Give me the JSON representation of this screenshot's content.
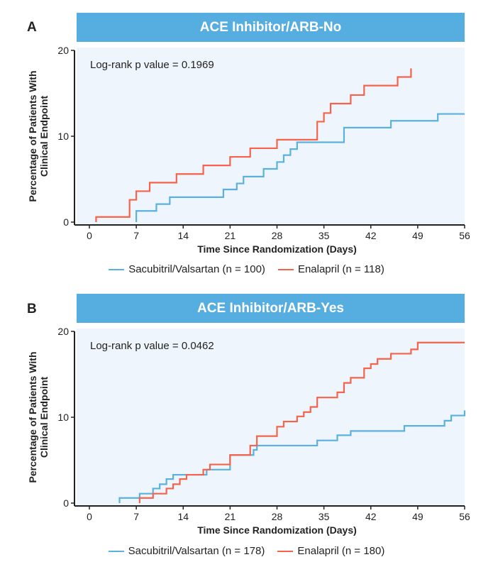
{
  "panels": [
    {
      "letter": "A",
      "banner": "ACE Inhibitor/ARB-No",
      "pvalue": "Log-rank p value = 0.1969",
      "legend": [
        "Sacubitril/Valsartan (n = 100)",
        "Enalapril (n = 118)"
      ]
    },
    {
      "letter": "B",
      "banner": "ACE Inhibitor/ARB-Yes",
      "pvalue": "Log-rank p value = 0.0462",
      "legend": [
        "Sacubitril/Valsartan (n = 178)",
        "Enalapril (n = 180)"
      ]
    }
  ],
  "colors": {
    "banner": "#56ade0",
    "sacubitril": "#5ab1de",
    "enalapril": "#f4634a",
    "plot_bg": "#eef5fc"
  },
  "chart_data": [
    {
      "type": "line",
      "step": true,
      "title": "ACE Inhibitor/ARB-No",
      "xlabel": "Time Since Randomization (Days)",
      "ylabel": "Percentage of Patients With Clinical Endpoint",
      "xlim": [
        0,
        56
      ],
      "ylim": [
        0,
        20
      ],
      "xticks": [
        0,
        7,
        14,
        21,
        28,
        35,
        42,
        49,
        56
      ],
      "yticks": [
        0,
        10,
        20
      ],
      "annotation": "Log-rank p value = 0.1969",
      "legend_position": "bottom",
      "series": [
        {
          "name": "Sacubitril/Valsartan (n = 100)",
          "color": "#5ab1de",
          "x": [
            7,
            7,
            10,
            12,
            20,
            22,
            23,
            26,
            28,
            29,
            30,
            31,
            38,
            45,
            52,
            56
          ],
          "y": [
            0,
            1.3,
            2.1,
            2.9,
            3.8,
            4.5,
            5.3,
            6.2,
            7.0,
            7.8,
            8.5,
            9.3,
            11.0,
            11.8,
            12.6,
            12.6
          ]
        },
        {
          "name": "Enalapril (n = 118)",
          "color": "#f4634a",
          "x": [
            1,
            1,
            6,
            7,
            9,
            13,
            17,
            21,
            24,
            28,
            34,
            35,
            36,
            39,
            41,
            46,
            48,
            48
          ],
          "y": [
            0,
            0.6,
            2.6,
            3.6,
            4.6,
            5.6,
            6.6,
            7.6,
            8.6,
            9.6,
            11.7,
            12.7,
            13.8,
            14.8,
            15.9,
            16.9,
            16.9,
            17.9
          ]
        }
      ]
    },
    {
      "type": "line",
      "step": true,
      "title": "ACE Inhibitor/ARB-Yes",
      "xlabel": "Time Since Randomization (Days)",
      "ylabel": "Percentage of Patients With Clinical Endpoint",
      "xlim": [
        0,
        56
      ],
      "ylim": [
        0,
        20
      ],
      "xticks": [
        0,
        7,
        14,
        21,
        28,
        35,
        42,
        49,
        56
      ],
      "yticks": [
        0,
        10,
        20
      ],
      "annotation": "Log-rank p value = 0.0462",
      "legend_position": "bottom",
      "series": [
        {
          "name": "Sacubitril/Valsartan (n = 178)",
          "color": "#5ab1de",
          "x": [
            4.5,
            4.5,
            7.5,
            9.5,
            10.5,
            11.5,
            12.5,
            17.5,
            21,
            24.5,
            25,
            34,
            37,
            39,
            47,
            53,
            54,
            56,
            56
          ],
          "y": [
            0,
            0.6,
            1.1,
            1.7,
            2.2,
            2.8,
            3.3,
            3.9,
            5.6,
            6.2,
            6.7,
            7.3,
            7.9,
            8.4,
            9.0,
            9.6,
            10.2,
            10.2,
            10.8
          ]
        },
        {
          "name": "Enalapril (n = 180)",
          "color": "#f4634a",
          "x": [
            7.5,
            7.5,
            9.5,
            11.5,
            12.5,
            13.5,
            14.5,
            17,
            18,
            21,
            24,
            25,
            28,
            29,
            31,
            32,
            33,
            34,
            37,
            38,
            39,
            41,
            42,
            43,
            45,
            48,
            49,
            56
          ],
          "y": [
            0,
            0.6,
            1.1,
            1.7,
            2.2,
            2.8,
            3.3,
            3.9,
            4.5,
            5.6,
            6.7,
            7.8,
            8.9,
            9.5,
            10.1,
            10.6,
            11.2,
            12.3,
            12.9,
            14.0,
            14.6,
            15.7,
            16.2,
            16.8,
            17.4,
            17.9,
            18.7,
            18.7
          ]
        }
      ]
    }
  ]
}
